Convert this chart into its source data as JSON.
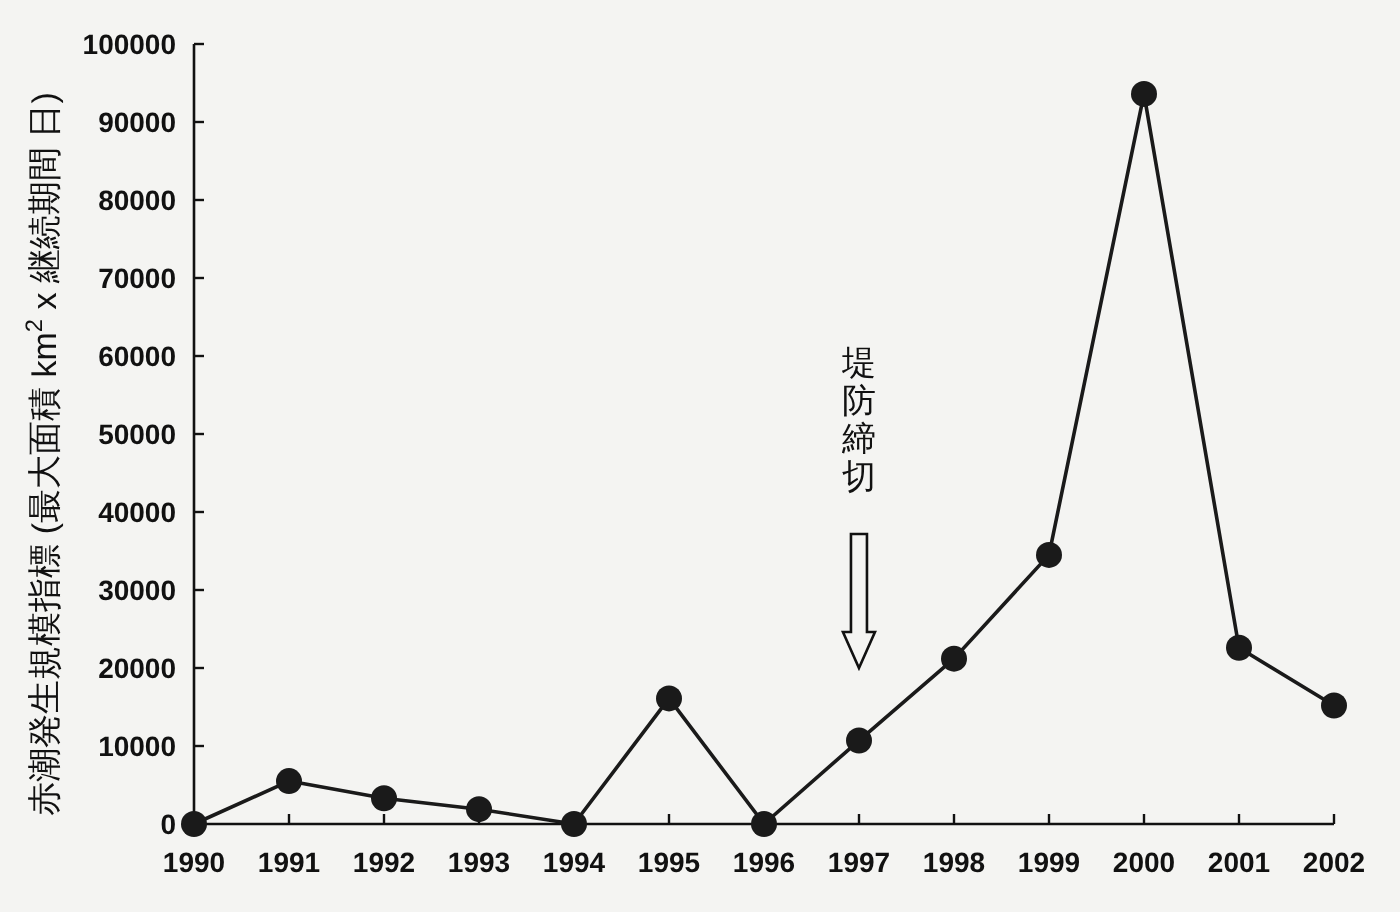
{
  "chart_data": {
    "type": "line",
    "ylabel": "赤潮発生規模指標 (最大面積 km$^{2}$ x 継続期間 日)",
    "categories": [
      "1990",
      "1991",
      "1992",
      "1993",
      "1994",
      "1995",
      "1996",
      "1997",
      "1998",
      "1999",
      "2000",
      "2001",
      "2002"
    ],
    "series": [
      {
        "color": "#1a1a1a",
        "values": [
          0,
          5500,
          3300,
          1900,
          0,
          16100,
          0,
          10700,
          21200,
          34500,
          93600,
          22600,
          15200
        ]
      }
    ],
    "ylim": [
      0,
      100000
    ],
    "yticks": [
      0,
      10000,
      20000,
      30000,
      40000,
      50000,
      60000,
      70000,
      80000,
      90000,
      100000
    ],
    "annotations": [
      "堤防締切"
    ],
    "marker": "circle",
    "line_style": "solid"
  }
}
